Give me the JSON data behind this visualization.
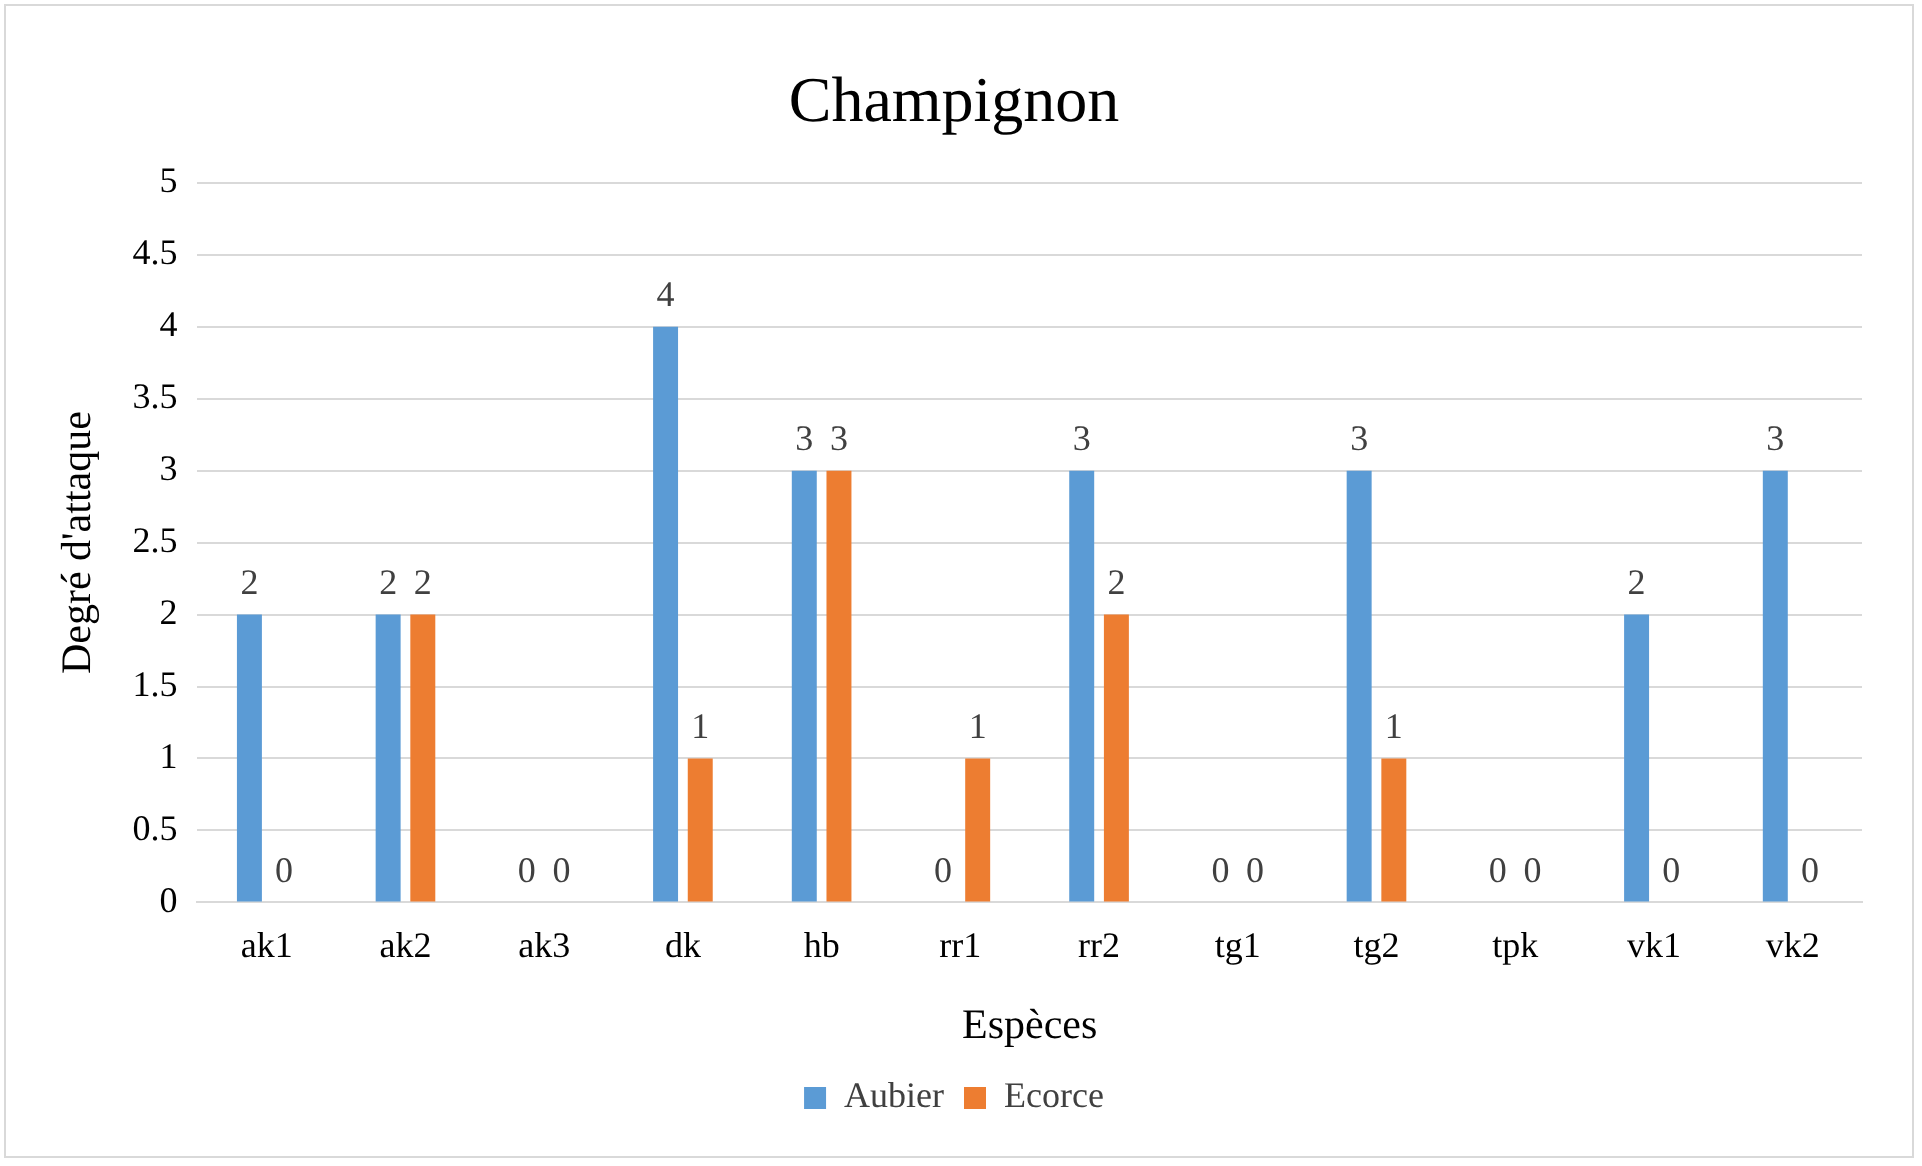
{
  "chart_data": {
    "type": "bar",
    "title": "Champignon",
    "xlabel": "Espèces",
    "ylabel": "Degré d'attaque",
    "categories": [
      "ak1",
      "ak2",
      "ak3",
      "dk",
      "hb",
      "rr1",
      "rr2",
      "tg1",
      "tg2",
      "tpk",
      "vk1",
      "vk2"
    ],
    "series": [
      {
        "name": "Aubier",
        "color": "#5b9bd5",
        "values": [
          2,
          2,
          0,
          4,
          3,
          0,
          3,
          0,
          3,
          0,
          2,
          3
        ]
      },
      {
        "name": "Ecorce",
        "color": "#ed7d31",
        "values": [
          0,
          2,
          0,
          1,
          3,
          1,
          2,
          0,
          1,
          0,
          0,
          0
        ]
      }
    ],
    "ylim": [
      0,
      5
    ],
    "yticks": [
      0,
      0.5,
      1,
      1.5,
      2,
      2.5,
      3,
      3.5,
      4,
      4.5,
      5
    ],
    "grid": "y",
    "legend": "bottom",
    "data_labels": true
  }
}
